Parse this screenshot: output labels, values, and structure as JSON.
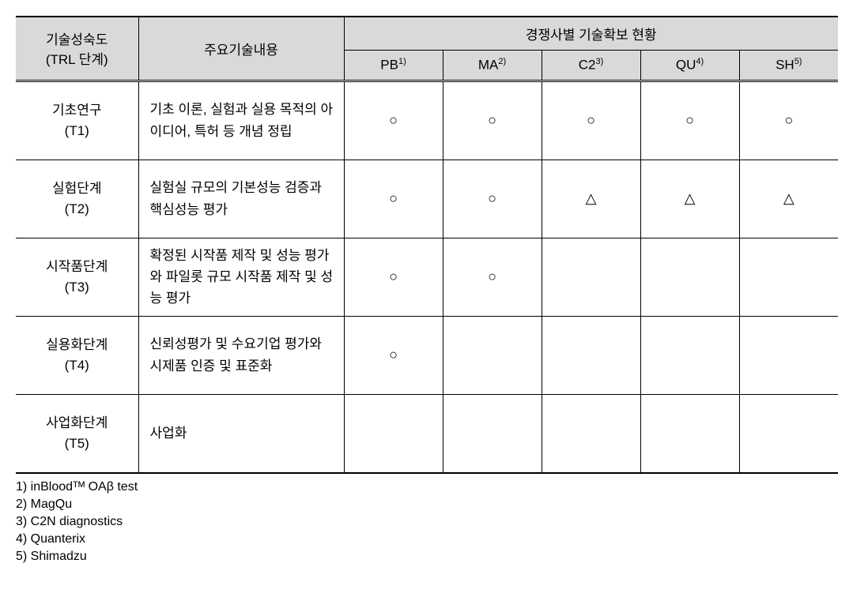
{
  "table": {
    "header": {
      "trl": "기술성숙도\n(TRL 단계)",
      "desc": "주요기술내용",
      "group": "경쟁사별 기술확보 현황",
      "companies": [
        {
          "code": "PB",
          "sup": "1)"
        },
        {
          "code": "MA",
          "sup": "2)"
        },
        {
          "code": "C2",
          "sup": "3)"
        },
        {
          "code": "QU",
          "sup": "4)"
        },
        {
          "code": "SH",
          "sup": "5)"
        }
      ]
    },
    "rows": [
      {
        "trl_main": "기초연구",
        "trl_sub": "(T1)",
        "desc": "기초 이론, 실험과 실용 목적의 아이디어, 특허 등 개념 정립",
        "marks": [
          "○",
          "○",
          "○",
          "○",
          "○"
        ]
      },
      {
        "trl_main": "실험단계",
        "trl_sub": "(T2)",
        "desc": "실험실 규모의 기본성능 검증과 핵심성능 평가",
        "marks": [
          "○",
          "○",
          "△",
          "△",
          "△"
        ]
      },
      {
        "trl_main": "시작품단계",
        "trl_sub": "(T3)",
        "desc": "확정된 시작품 제작 및 성능 평가와 파일롯 규모 시작품 제작 및 성능 평가",
        "marks": [
          "○",
          "○",
          "",
          "",
          ""
        ]
      },
      {
        "trl_main": "실용화단계",
        "trl_sub": "(T4)",
        "desc": "신뢰성평가 및 수요기업 평가와 시제품 인증 및 표준화",
        "marks": [
          "○",
          "",
          "",
          "",
          ""
        ]
      },
      {
        "trl_main": "사업화단계",
        "trl_sub": "(T5)",
        "desc": "사업화",
        "marks": [
          "",
          "",
          "",
          "",
          ""
        ]
      }
    ]
  },
  "footnotes": [
    "1) inBloodᵀᴹ OAβ test",
    "2) MagQu",
    "3) C2N diagnostics",
    "4) Quanterix",
    "5) Shimadzu"
  ],
  "styling": {
    "header_bg": "#d9d9d9",
    "border_color": "#000000",
    "text_color": "#000000",
    "background_color": "#ffffff",
    "base_font_size": 17,
    "footnote_font_size": 16,
    "mark_font_size": 18,
    "col_widths": {
      "trl": 155,
      "desc": 260,
      "company": 125
    }
  }
}
